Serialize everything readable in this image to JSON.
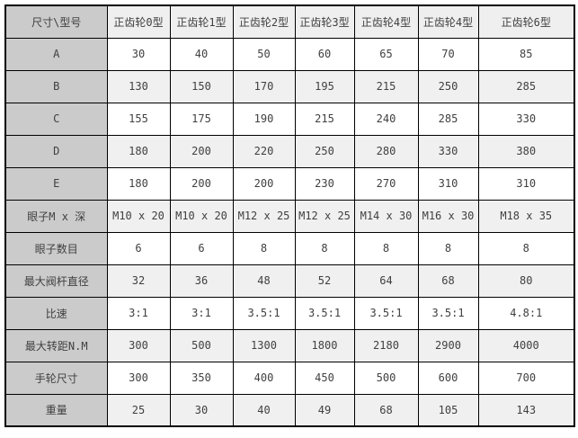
{
  "colors": {
    "border": "#000000",
    "header_label_bg": "#cbcbcb",
    "header_data_bg": "#efefef",
    "row_label_bg": "#cbcbcb",
    "row_even_bg": "#ffffff",
    "row_odd_bg": "#f0f0f0",
    "text": "#404040",
    "page_bg": "#ffffff"
  },
  "table": {
    "corner_header": "尺寸\\型号",
    "column_headers": [
      "正齿轮0型",
      "正齿轮1型",
      "正齿轮2型",
      "正齿轮3型",
      "正齿轮4型",
      "正齿轮4型",
      "正齿轮6型"
    ],
    "rows": [
      {
        "label": "A",
        "values": [
          "30",
          "40",
          "50",
          "60",
          "65",
          "70",
          "85"
        ]
      },
      {
        "label": "B",
        "values": [
          "130",
          "150",
          "170",
          "195",
          "215",
          "250",
          "285"
        ]
      },
      {
        "label": "C",
        "values": [
          "155",
          "175",
          "190",
          "215",
          "240",
          "285",
          "330"
        ]
      },
      {
        "label": "D",
        "values": [
          "180",
          "200",
          "220",
          "250",
          "280",
          "330",
          "380"
        ]
      },
      {
        "label": "E",
        "values": [
          "180",
          "200",
          "200",
          "230",
          "270",
          "310",
          "310"
        ]
      },
      {
        "label": "眼子M x 深",
        "values": [
          "M10 x 20",
          "M10 x 20",
          "M12 x 25",
          "M12 x 25",
          "M14 x 30",
          "M16 x 30",
          "M18 x 35"
        ]
      },
      {
        "label": "眼子数目",
        "values": [
          "6",
          "6",
          "8",
          "8",
          "8",
          "8",
          "8"
        ]
      },
      {
        "label": "最大阀杆直径",
        "values": [
          "32",
          "36",
          "48",
          "52",
          "64",
          "68",
          "80"
        ]
      },
      {
        "label": "比速",
        "values": [
          "3:1",
          "3:1",
          "3.5:1",
          "3.5:1",
          "3.5:1",
          "3.5:1",
          "4.8:1"
        ]
      },
      {
        "label": "最大转距N.M",
        "values": [
          "300",
          "500",
          "1300",
          "1800",
          "2180",
          "2900",
          "4000"
        ]
      },
      {
        "label": "手轮尺寸",
        "values": [
          "300",
          "350",
          "400",
          "450",
          "500",
          "600",
          "700"
        ]
      },
      {
        "label": "重量",
        "values": [
          "25",
          "30",
          "40",
          "49",
          "68",
          "105",
          "143"
        ]
      }
    ]
  }
}
